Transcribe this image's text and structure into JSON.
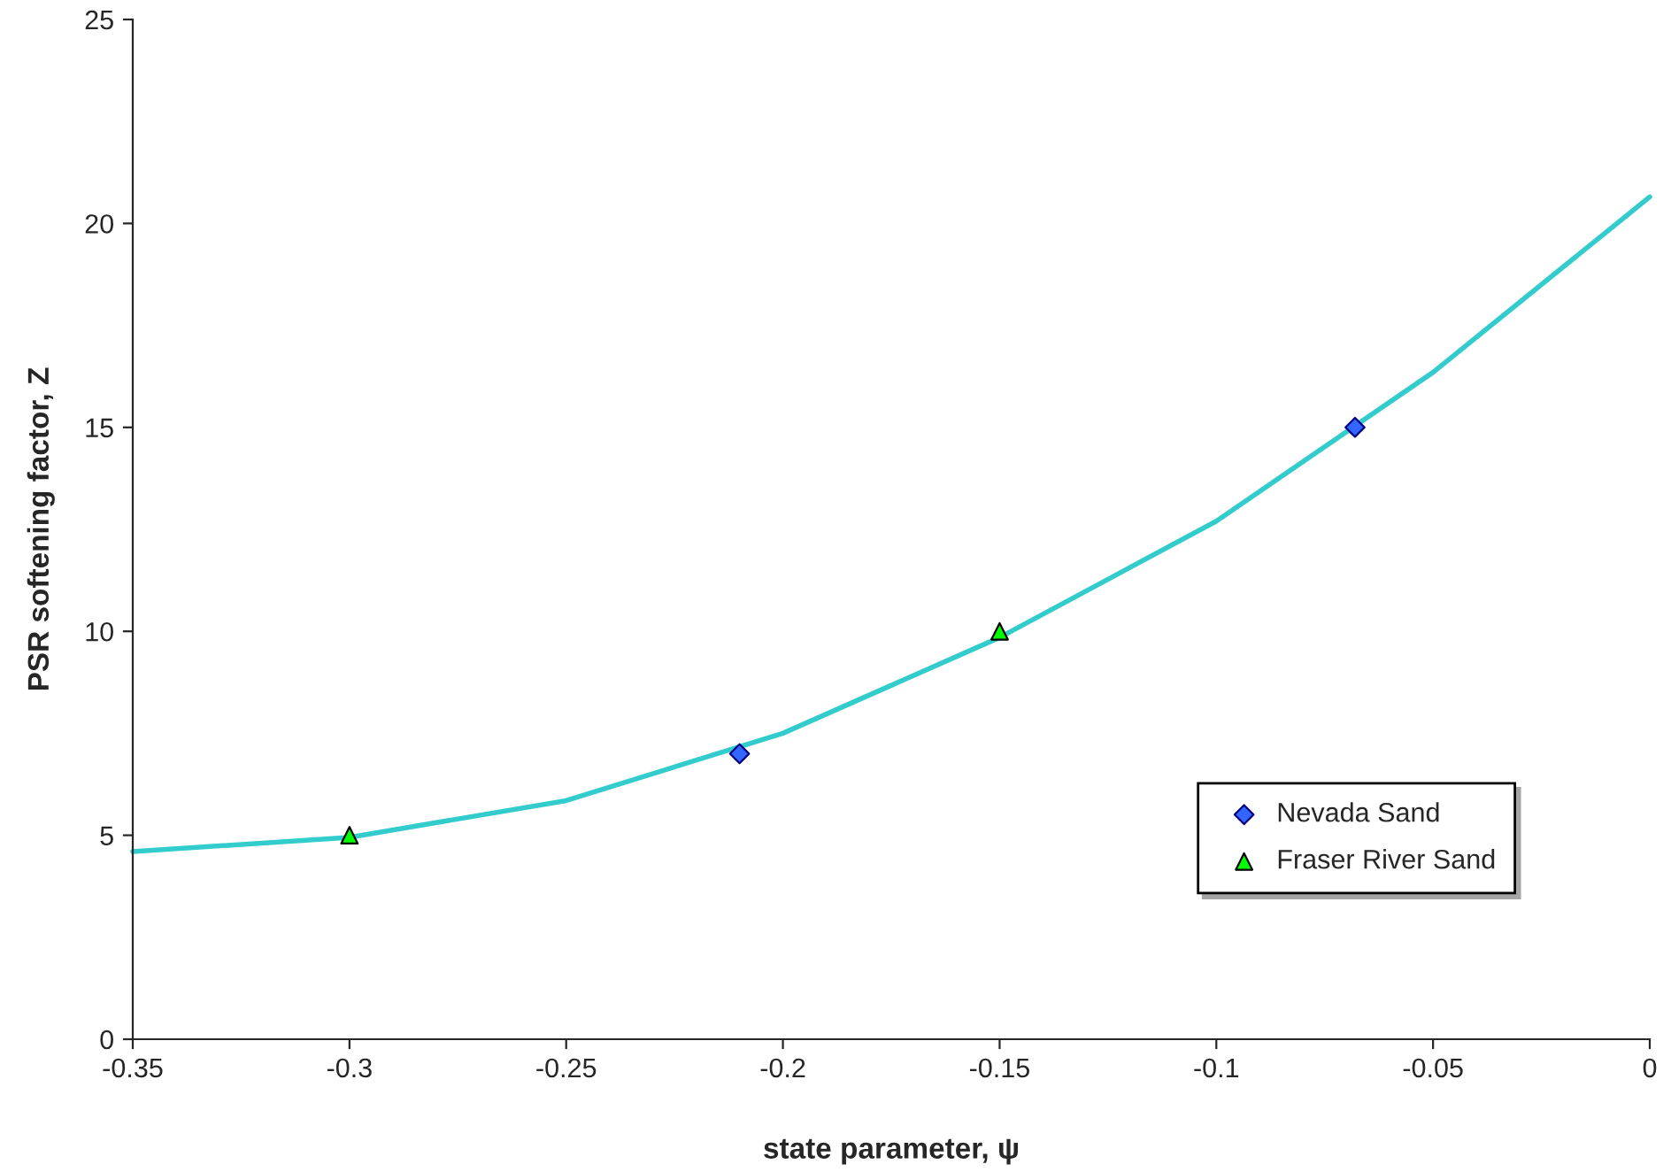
{
  "chart_data": {
    "type": "line",
    "xlabel": "state parameter, ψ",
    "ylabel": "PSR softening factor, Z",
    "xlim": [
      -0.35,
      0
    ],
    "xticks": [
      -0.35,
      -0.3,
      -0.25,
      -0.2,
      -0.15,
      -0.1,
      -0.05,
      0
    ],
    "ylim": [
      0,
      25
    ],
    "yticks": [
      0,
      5,
      10,
      15,
      20,
      25
    ],
    "grid": false,
    "legend": "lower right",
    "series": [
      {
        "color": "#33cccc",
        "marker": "none",
        "x": [
          -0.35,
          -0.3,
          -0.25,
          -0.2,
          -0.15,
          -0.1,
          -0.05,
          0
        ],
        "values": [
          4.6,
          4.95,
          5.85,
          7.5,
          9.85,
          12.7,
          16.35,
          20.65
        ]
      },
      {
        "type": "scatter",
        "name": "Nevada Sand",
        "color": "#3366ff",
        "marker": "diamond",
        "x": [
          -0.21,
          -0.068
        ],
        "values": [
          7,
          15
        ]
      },
      {
        "type": "scatter",
        "name": "Fraser River Sand",
        "color": "#00ff00",
        "marker": "triangle",
        "x": [
          -0.3,
          -0.15
        ],
        "values": [
          5,
          10
        ]
      }
    ]
  }
}
